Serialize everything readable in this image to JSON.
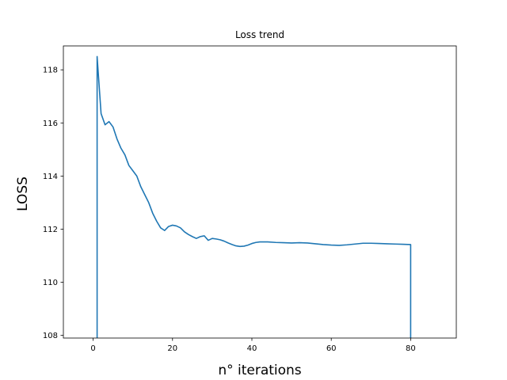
{
  "chart_data": {
    "type": "line",
    "title": "Loss trend",
    "xlabel": "n° iterations",
    "ylabel": "LOSS",
    "xlim": [
      -7.5,
      91.5
    ],
    "ylim": [
      107.9,
      118.9
    ],
    "xticks": [
      0,
      20,
      40,
      60,
      80
    ],
    "yticks": [
      108,
      110,
      112,
      114,
      116,
      118
    ],
    "grid": false,
    "series": [
      {
        "color": "#1f77b4",
        "x": [
          1,
          1,
          2,
          3,
          4,
          5,
          6,
          7,
          8,
          9,
          10,
          11,
          12,
          13,
          14,
          15,
          16,
          17,
          18,
          19,
          20,
          21,
          22,
          23,
          24,
          25,
          26,
          27,
          28,
          29,
          30,
          31,
          32,
          33,
          34,
          35,
          36,
          37,
          38,
          39,
          40,
          41,
          42,
          43,
          44,
          46,
          48,
          50,
          52,
          54,
          56,
          58,
          60,
          62,
          64,
          66,
          68,
          70,
          72,
          74,
          76,
          78,
          80,
          80
        ],
        "y": [
          107.9,
          118.5,
          116.35,
          115.93,
          116.05,
          115.85,
          115.4,
          115.05,
          114.8,
          114.4,
          114.2,
          114.0,
          113.6,
          113.3,
          113.0,
          112.6,
          112.3,
          112.05,
          111.95,
          112.1,
          112.15,
          112.12,
          112.05,
          111.9,
          111.8,
          111.72,
          111.65,
          111.72,
          111.75,
          111.58,
          111.65,
          111.63,
          111.6,
          111.55,
          111.48,
          111.42,
          111.37,
          111.35,
          111.36,
          111.4,
          111.46,
          111.5,
          111.52,
          111.52,
          111.52,
          111.5,
          111.49,
          111.48,
          111.49,
          111.48,
          111.45,
          111.42,
          111.4,
          111.39,
          111.41,
          111.44,
          111.47,
          111.47,
          111.46,
          111.45,
          111.44,
          111.43,
          111.42,
          107.9
        ]
      }
    ]
  }
}
